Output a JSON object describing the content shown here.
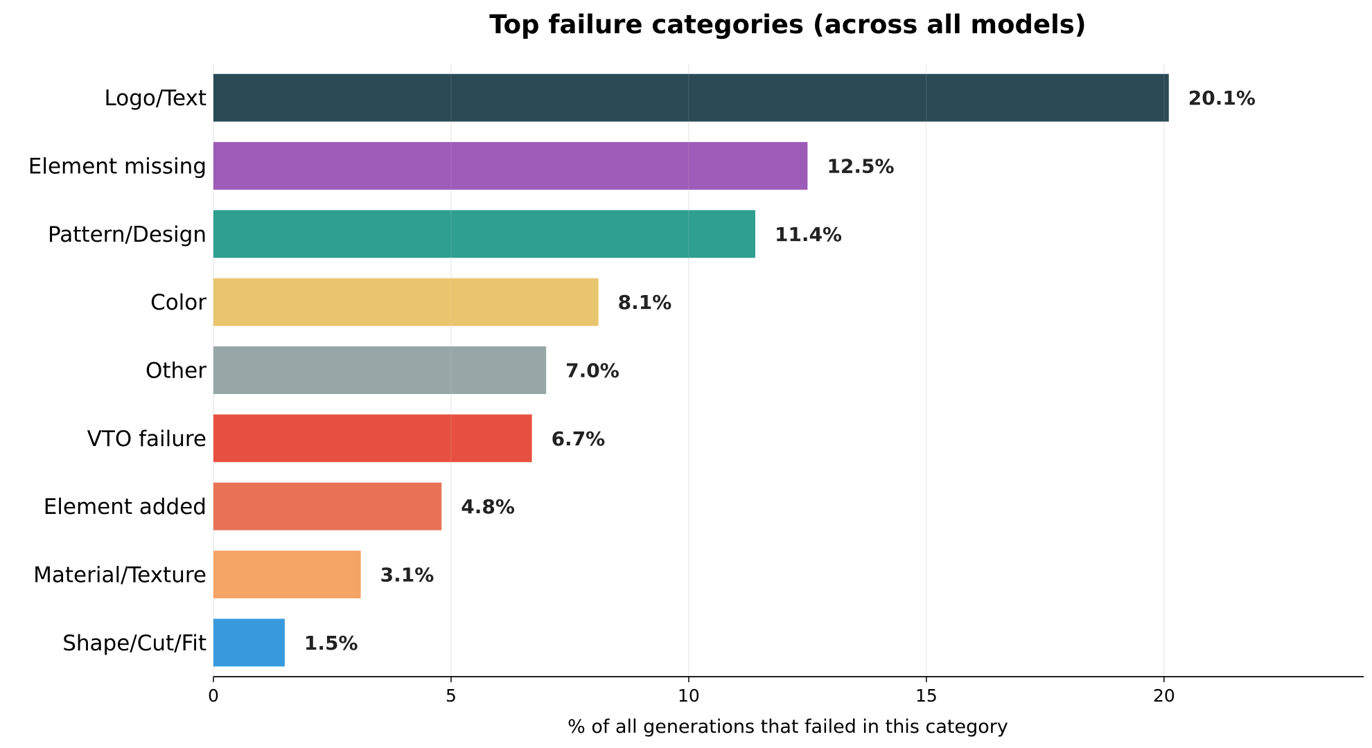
{
  "chart_data": {
    "type": "bar",
    "orientation": "horizontal",
    "title": "Top failure categories  (across all models)",
    "xlabel": "% of all generations that failed in this category",
    "ylabel": "",
    "xlim": [
      0,
      24.2
    ],
    "xticks": [
      0,
      5,
      10,
      15,
      20
    ],
    "grid": "x",
    "categories": [
      "Logo/Text",
      "Element missing",
      "Pattern/Design",
      "Color",
      "Other",
      "VTO failure",
      "Element added",
      "Material/Texture",
      "Shape/Cut/Fit"
    ],
    "values": [
      20.1,
      12.5,
      11.4,
      8.1,
      7.0,
      6.7,
      4.8,
      3.1,
      1.5
    ],
    "value_labels": [
      "20.1%",
      "12.5%",
      "11.4%",
      "8.1%",
      "7.0%",
      "6.7%",
      "4.8%",
      "3.1%",
      "1.5%"
    ],
    "colors": [
      "#264653",
      "#9b59b6",
      "#2a9d8f",
      "#e9c46a",
      "#95a5a6",
      "#e74c3c",
      "#e76f51",
      "#f4a261",
      "#3498db"
    ]
  }
}
